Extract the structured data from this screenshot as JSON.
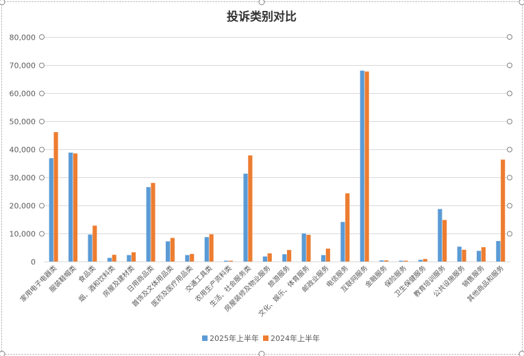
{
  "chart_data": {
    "type": "bar",
    "title": "投诉类别对比",
    "categories": [
      "家用电子电器类",
      "服装鞋帽类",
      "食品类",
      "烟、酒和饮料类",
      "房屋及建材类",
      "日用商品类",
      "首饰及文体用品类",
      "医药及医疗用品类",
      "交通工具类",
      "农用生产资料类",
      "生活、社会服务类",
      "房屋装修及物业服务",
      "旅游服务",
      "文化、娱乐、体育服务",
      "邮政业服务",
      "电信服务",
      "互联网服务",
      "金融服务",
      "保险服务",
      "卫生保健服务",
      "教育培训服务",
      "公共设施服务",
      "销售服务",
      "其他商品和服务"
    ],
    "series": [
      {
        "name": "2025年上半年",
        "values": [
          36800,
          38800,
          9600,
          1300,
          2300,
          26500,
          7200,
          2300,
          8700,
          300,
          31300,
          1800,
          2600,
          10000,
          2300,
          14100,
          68000,
          400,
          300,
          600,
          18700,
          5300,
          3800,
          7300
        ]
      },
      {
        "name": "2024年上半年",
        "values": [
          46100,
          38500,
          12800,
          2400,
          3300,
          28000,
          8400,
          2700,
          9700,
          300,
          37800,
          2900,
          4100,
          9500,
          4600,
          24300,
          67700,
          400,
          300,
          900,
          14800,
          4200,
          5100,
          36300
        ]
      }
    ],
    "ylim": [
      0,
      80000
    ],
    "yticks": [
      "0",
      "10,000",
      "20,000",
      "30,000",
      "40,000",
      "50,000",
      "60,000",
      "70,000",
      "80,000"
    ],
    "grid": true,
    "legend_position": "bottom",
    "colors": [
      "#5b9bd5",
      "#ed7d31"
    ]
  }
}
